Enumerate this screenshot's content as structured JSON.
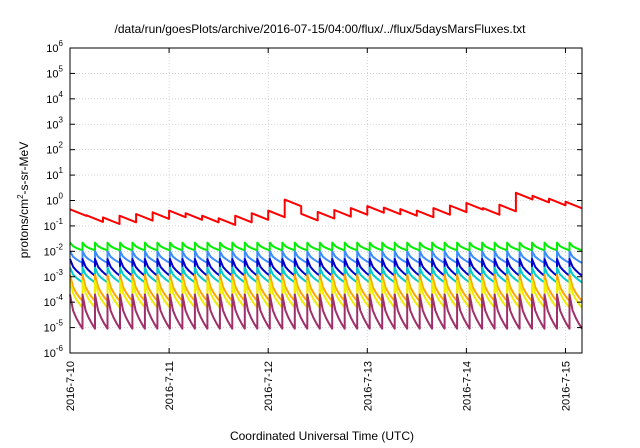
{
  "chart_data": {
    "type": "line",
    "title": "/data/run/goesPlots/archive/2016-07-15/04:00/flux/../flux/5daysMarsFluxes.txt",
    "xlabel": "Coordinated Universal Time (UTC)",
    "ylabel": {
      "base": "protons/cm",
      "superscript": "2",
      "suffix": "-s-sr-MeV"
    },
    "yscale": "log",
    "ylim_exponents": [
      -6,
      6
    ],
    "y_tick_exponents": [
      -6,
      -5,
      -4,
      -3,
      -2,
      -1,
      0,
      1,
      2,
      3,
      4,
      5,
      6
    ],
    "y_tick_base": "10",
    "xlim": [
      "2016-07-10",
      "2016-07-15T04:00"
    ],
    "x_ticks": [
      "2016-7-10",
      "2016-7-11",
      "2016-7-12",
      "2016-7-13",
      "2016-7-14",
      "2016-7-15"
    ],
    "grid": true,
    "legend": "none",
    "series": [
      {
        "color": "#ff0000",
        "style": "sawtooth",
        "x": [
          "2016-07-10T00:00",
          "2016-07-10T06:00",
          "2016-07-11T00:00",
          "2016-07-11T12:00",
          "2016-07-12T00:00",
          "2016-07-12T03:00",
          "2016-07-12T08:00",
          "2016-07-13T00:00",
          "2016-07-13T12:00",
          "2016-07-14T00:00",
          "2016-07-14T06:00",
          "2016-07-14T12:00",
          "2016-07-15T00:00",
          "2016-07-15T04:00"
        ],
        "values": [
          0.45,
          0.2,
          0.4,
          0.2,
          0.4,
          1.5,
          0.3,
          0.6,
          0.4,
          0.8,
          0.4,
          2.0,
          0.9,
          0.4
        ],
        "teeth_per_day": 6,
        "tooth_drop_ratio": 0.55
      },
      {
        "color": "#00ee00",
        "style": "sawtooth",
        "peak": 0.022,
        "trough": 0.011,
        "teeth_per_day": 8
      },
      {
        "color": "#3a8cff",
        "style": "sawtooth",
        "peak": 0.01,
        "trough": 0.0035,
        "teeth_per_day": 8
      },
      {
        "color": "#0000cc",
        "style": "sawtooth",
        "peak": 0.005,
        "trough": 0.0011,
        "teeth_per_day": 8
      },
      {
        "color": "#00cccc",
        "style": "sawtooth",
        "peak": 0.0023,
        "trough": 0.0006,
        "teeth_per_day": 8
      },
      {
        "color": "#ffa500",
        "style": "sawtooth",
        "peak": 0.0012,
        "trough": 0.00011,
        "teeth_per_day": 8
      },
      {
        "color": "#eeee00",
        "style": "sawtooth",
        "peak": 0.0007,
        "trough": 6e-05,
        "teeth_per_day": 8
      },
      {
        "color": "#a0306a",
        "style": "sawtooth",
        "peak": 0.0002,
        "trough": 9e-06,
        "teeth_per_day": 8
      }
    ]
  }
}
